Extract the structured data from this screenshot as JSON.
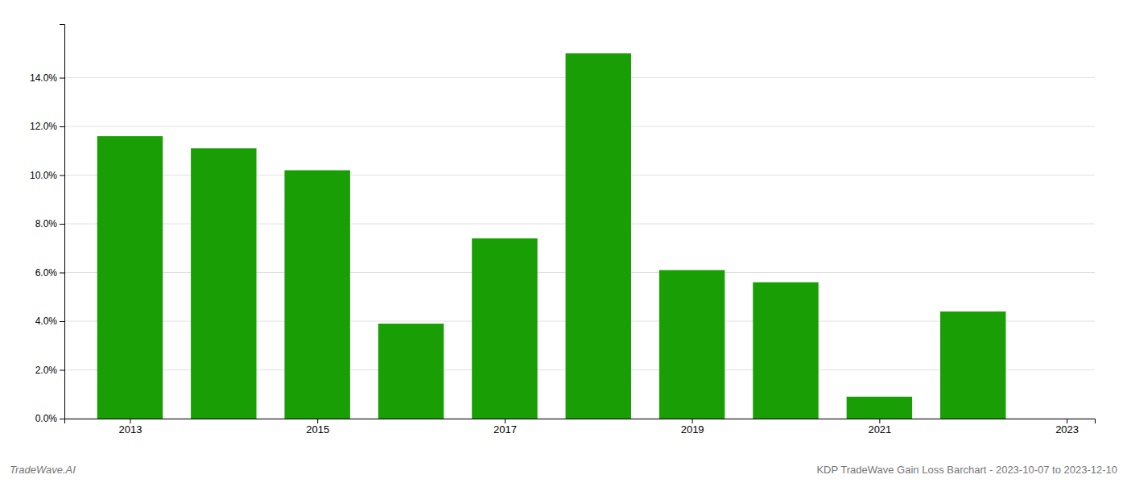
{
  "chart_data": {
    "type": "bar",
    "x": [
      2013,
      2014,
      2015,
      2016,
      2017,
      2018,
      2019,
      2020,
      2021,
      2022
    ],
    "values": [
      0.116,
      0.111,
      0.102,
      0.039,
      0.074,
      0.15,
      0.061,
      0.056,
      0.009,
      0.044
    ],
    "color": "#1a9e06",
    "xlim": [
      2012.3,
      2023.3
    ],
    "xticks": [
      2013,
      2015,
      2017,
      2019,
      2021,
      2023
    ],
    "ylim": [
      0,
      0.162
    ],
    "yticks": [
      {
        "value": 0.0,
        "label": "0.0%"
      },
      {
        "value": 0.02,
        "label": "2.0%"
      },
      {
        "value": 0.04,
        "label": "4.0%"
      },
      {
        "value": 0.06,
        "label": "6.0%"
      },
      {
        "value": 0.08,
        "label": "8.0%"
      },
      {
        "value": 0.1,
        "label": "10.0%"
      },
      {
        "value": 0.12,
        "label": "12.0%"
      },
      {
        "value": 0.14,
        "label": "14.0%"
      }
    ],
    "grid": true,
    "annotations": [
      "TradeWave.AI",
      "KDP TradeWave Gain Loss Barchart - 2023-10-07 to 2023-12-10"
    ]
  }
}
